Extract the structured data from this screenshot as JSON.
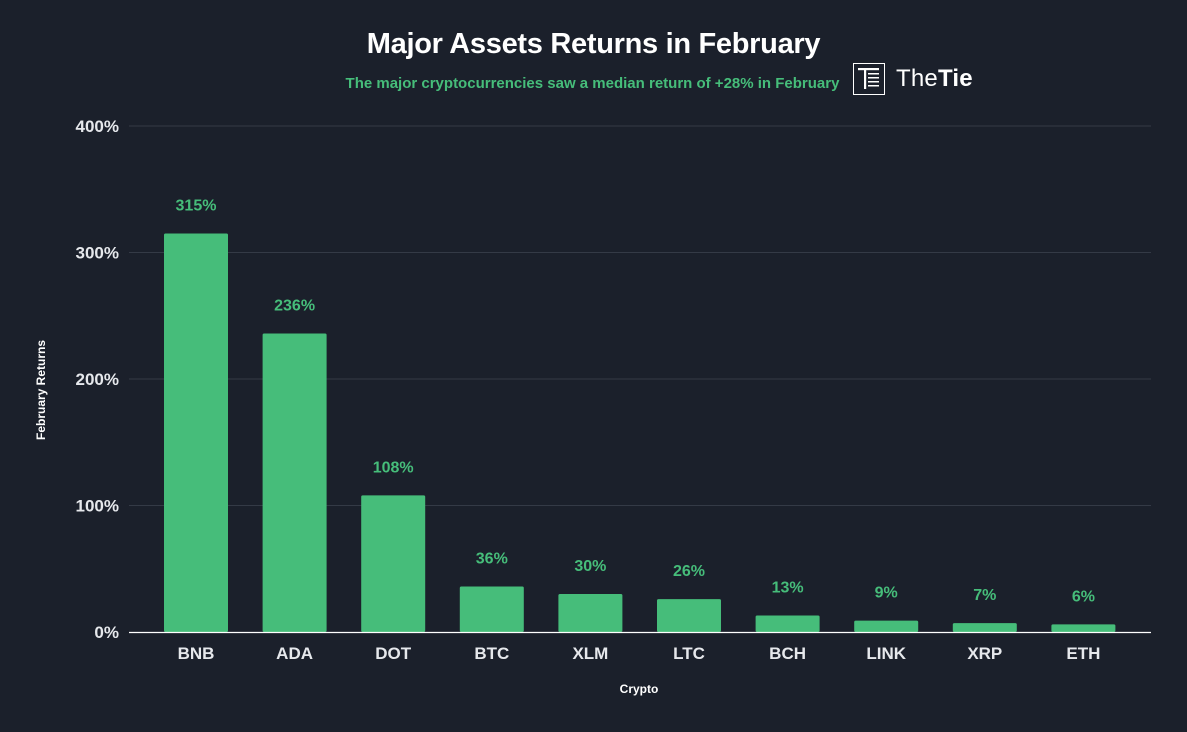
{
  "header": {
    "title": "Major Assets Returns in February",
    "subtitle": "The major cryptocurrencies saw a median return of +28% in February",
    "logo_text_light": "The",
    "logo_text_bold": "Tie"
  },
  "colors": {
    "background": "#1b202b",
    "bar": "#46bd7a",
    "label": "#46bd7a",
    "grid": "#343a46",
    "axis_text": "#e6e8ec"
  },
  "chart_data": {
    "type": "bar",
    "title": "Major Assets Returns in February",
    "subtitle": "The major cryptocurrencies saw a median return of +28% in February",
    "xlabel": "Crypto",
    "ylabel": "February Returns",
    "categories": [
      "BNB",
      "ADA",
      "DOT",
      "BTC",
      "XLM",
      "LTC",
      "BCH",
      "LINK",
      "XRP",
      "ETH"
    ],
    "values": [
      315,
      236,
      108,
      36,
      30,
      26,
      13,
      9,
      7,
      6
    ],
    "value_labels": [
      "315%",
      "236%",
      "108%",
      "36%",
      "30%",
      "26%",
      "13%",
      "9%",
      "7%",
      "6%"
    ],
    "ylim": [
      0,
      400
    ],
    "yticks": [
      0,
      100,
      200,
      300,
      400
    ],
    "ytick_labels": [
      "0%",
      "100%",
      "200%",
      "300%",
      "400%"
    ],
    "grid": true,
    "legend": "none"
  }
}
